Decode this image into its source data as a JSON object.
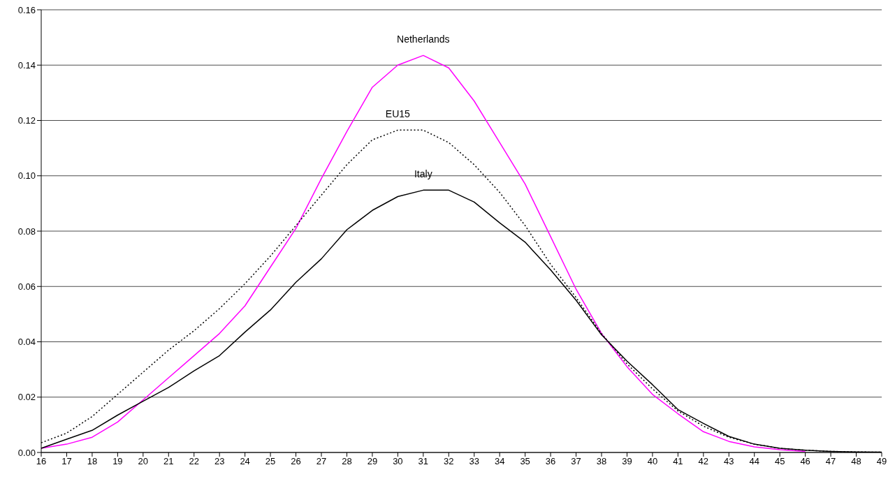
{
  "chart_data": {
    "type": "line",
    "categories": [
      "16",
      "17",
      "18",
      "19",
      "20",
      "21",
      "22",
      "23",
      "24",
      "25",
      "26",
      "27",
      "28",
      "29",
      "30",
      "31",
      "32",
      "33",
      "34",
      "35",
      "36",
      "37",
      "38",
      "39",
      "40",
      "41",
      "42",
      "43",
      "44",
      "45",
      "46",
      "47",
      "48",
      "49"
    ],
    "series": [
      {
        "name": "Netherlands",
        "color": "#ff00ff",
        "line_style": "solid",
        "values": [
          0.0015,
          0.003,
          0.0055,
          0.011,
          0.019,
          0.027,
          0.035,
          0.043,
          0.053,
          0.067,
          0.081,
          0.099,
          0.116,
          0.132,
          0.14,
          0.1435,
          0.139,
          0.127,
          0.112,
          0.097,
          0.078,
          0.059,
          0.043,
          0.031,
          0.021,
          0.014,
          0.0075,
          0.004,
          0.002,
          0.001,
          0.0004,
          null,
          null,
          null
        ]
      },
      {
        "name": "EU15",
        "color": "#000000",
        "line_style": "dotted",
        "values": [
          0.0035,
          0.007,
          0.013,
          0.021,
          0.029,
          0.037,
          0.044,
          0.052,
          0.061,
          0.071,
          0.082,
          0.093,
          0.104,
          0.113,
          0.1165,
          0.1165,
          0.112,
          0.104,
          0.094,
          0.082,
          0.068,
          0.056,
          0.043,
          0.032,
          0.023,
          0.015,
          0.0095,
          0.0055,
          0.003,
          0.0015,
          0.0008,
          0.0004,
          0.0002,
          0.0001
        ]
      },
      {
        "name": "Italy",
        "color": "#000000",
        "line_style": "solid",
        "values": [
          0.0015,
          0.0048,
          0.008,
          0.0135,
          0.0185,
          0.0235,
          0.0295,
          0.035,
          0.0435,
          0.0515,
          0.0615,
          0.07,
          0.0805,
          0.0875,
          0.0925,
          0.0948,
          0.0948,
          0.0905,
          0.083,
          0.076,
          0.066,
          0.055,
          0.0425,
          0.033,
          0.0245,
          0.0155,
          0.0105,
          0.0058,
          0.003,
          0.0015,
          0.0008,
          0.0004,
          0.0002,
          0.0001
        ]
      }
    ],
    "ylim": [
      0,
      0.16
    ],
    "yticks": [
      {
        "value": 0,
        "label": "0.00"
      },
      {
        "value": 0.02,
        "label": "0.02"
      },
      {
        "value": 0.04,
        "label": "0.04"
      },
      {
        "value": 0.06,
        "label": "0.06"
      },
      {
        "value": 0.08,
        "label": "0.08"
      },
      {
        "value": 0.1,
        "label": "0.10"
      },
      {
        "value": 0.12,
        "label": "0.12"
      },
      {
        "value": 0.14,
        "label": "0.14"
      },
      {
        "value": 0.16,
        "label": "0.16"
      }
    ],
    "grid": "y",
    "marker": "none",
    "legend": false
  }
}
